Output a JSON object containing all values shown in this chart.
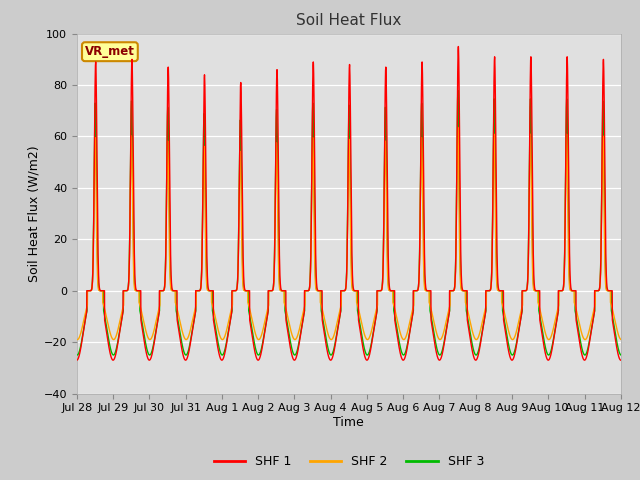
{
  "title": "Soil Heat Flux",
  "xlabel": "Time",
  "ylabel": "Soil Heat Flux (W/m2)",
  "ylim": [
    -40,
    100
  ],
  "yticks": [
    -40,
    -20,
    0,
    20,
    40,
    60,
    80,
    100
  ],
  "colors": {
    "SHF 1": "#ff0000",
    "SHF 2": "#ffa500",
    "SHF 3": "#00bb00"
  },
  "bg_color": "#cccccc",
  "plot_bg_color": "#e0e0e0",
  "annotation_text": "VR_met",
  "annotation_bg": "#ffff99",
  "annotation_border": "#cc8800",
  "day_peak_amps": [
    90,
    89,
    90,
    87,
    84,
    81,
    86,
    89,
    88,
    87,
    89,
    95,
    91,
    91,
    91,
    90
  ],
  "n_days": 16,
  "points_per_day": 288
}
